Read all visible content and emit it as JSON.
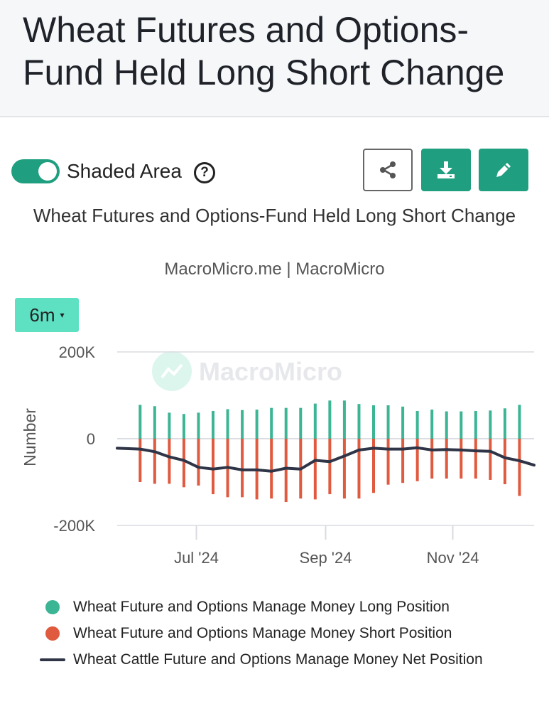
{
  "header": {
    "title": "Wheat Futures and Options-Fund Held Long Short Change"
  },
  "controls": {
    "shaded_area_label": "Shaded Area",
    "shaded_area_on": true,
    "help_glyph": "?",
    "share_icon": "share-icon",
    "download_icon": "download-icon",
    "edit_icon": "edit-icon",
    "range_label": "6m",
    "range_caret": "▾"
  },
  "chart_title": "Wheat Futures and Options-Fund Held Long Short Change",
  "source": "MacroMicro.me | MacroMicro",
  "watermark": "MacroMicro",
  "colors": {
    "long": "#3cb594",
    "short": "#e05a3f",
    "net": "#2f3547",
    "accent": "#1f9f80",
    "range": "#5ee0c3"
  },
  "chart_data": {
    "type": "bar",
    "ylabel": "Number",
    "ylim": [
      -200000,
      200000
    ],
    "yticks": [
      200000,
      0,
      -200000
    ],
    "ytick_labels": [
      "200K",
      "0",
      "-200K"
    ],
    "xlim": [
      "2024-05-24",
      "2024-12-10"
    ],
    "xticks": [
      "2024-07-01",
      "2024-09-01",
      "2024-11-01"
    ],
    "xtick_labels": [
      "Jul '24",
      "Sep '24",
      "Nov '24"
    ],
    "grid": true,
    "legend_position": "bottom",
    "dates": [
      "2024-06-04",
      "2024-06-11",
      "2024-06-18",
      "2024-06-25",
      "2024-07-02",
      "2024-07-09",
      "2024-07-16",
      "2024-07-23",
      "2024-07-30",
      "2024-08-06",
      "2024-08-13",
      "2024-08-20",
      "2024-08-27",
      "2024-09-03",
      "2024-09-10",
      "2024-09-17",
      "2024-09-24",
      "2024-10-01",
      "2024-10-08",
      "2024-10-15",
      "2024-10-22",
      "2024-10-29",
      "2024-11-05",
      "2024-11-12",
      "2024-11-19",
      "2024-11-26",
      "2024-12-03"
    ],
    "series": [
      {
        "name": "Wheat Future and Options Manage Money Long Position",
        "kind": "bar-up",
        "values": [
          78000,
          75000,
          60000,
          57000,
          60000,
          64000,
          68000,
          66000,
          67000,
          71000,
          71000,
          71000,
          81000,
          88000,
          88000,
          80000,
          77000,
          77000,
          74000,
          64000,
          67000,
          63000,
          63000,
          64000,
          65000,
          70000,
          78000
        ]
      },
      {
        "name": "Wheat Future and Options Manage Money Short Position",
        "kind": "bar-down",
        "values": [
          -100000,
          -104000,
          -104000,
          -112000,
          -108000,
          -128000,
          -135000,
          -135000,
          -140000,
          -138000,
          -146000,
          -138000,
          -140000,
          -128000,
          -138000,
          -138000,
          -125000,
          -106000,
          -102000,
          -98000,
          -92000,
          -92000,
          -92000,
          -92000,
          -95000,
          -105000,
          -132000
        ]
      },
      {
        "name": "Wheat Cattle Future and Options Manage Money Net Position",
        "kind": "line",
        "x": [
          "2024-05-24",
          "2024-06-04",
          "2024-06-11",
          "2024-06-18",
          "2024-06-25",
          "2024-07-02",
          "2024-07-09",
          "2024-07-16",
          "2024-07-23",
          "2024-07-30",
          "2024-08-06",
          "2024-08-13",
          "2024-08-20",
          "2024-08-27",
          "2024-09-03",
          "2024-09-10",
          "2024-09-17",
          "2024-09-24",
          "2024-10-01",
          "2024-10-08",
          "2024-10-15",
          "2024-10-22",
          "2024-10-29",
          "2024-11-05",
          "2024-11-12",
          "2024-11-19",
          "2024-11-26",
          "2024-12-03",
          "2024-12-10"
        ],
        "values": [
          -22000,
          -24000,
          -30000,
          -42000,
          -50000,
          -66000,
          -70000,
          -66000,
          -72000,
          -72000,
          -75000,
          -68000,
          -70000,
          -50000,
          -53000,
          -40000,
          -26000,
          -22000,
          -24000,
          -24000,
          -21000,
          -26000,
          -25000,
          -26000,
          -28000,
          -29000,
          -44000,
          -51000,
          -61000
        ]
      }
    ]
  }
}
